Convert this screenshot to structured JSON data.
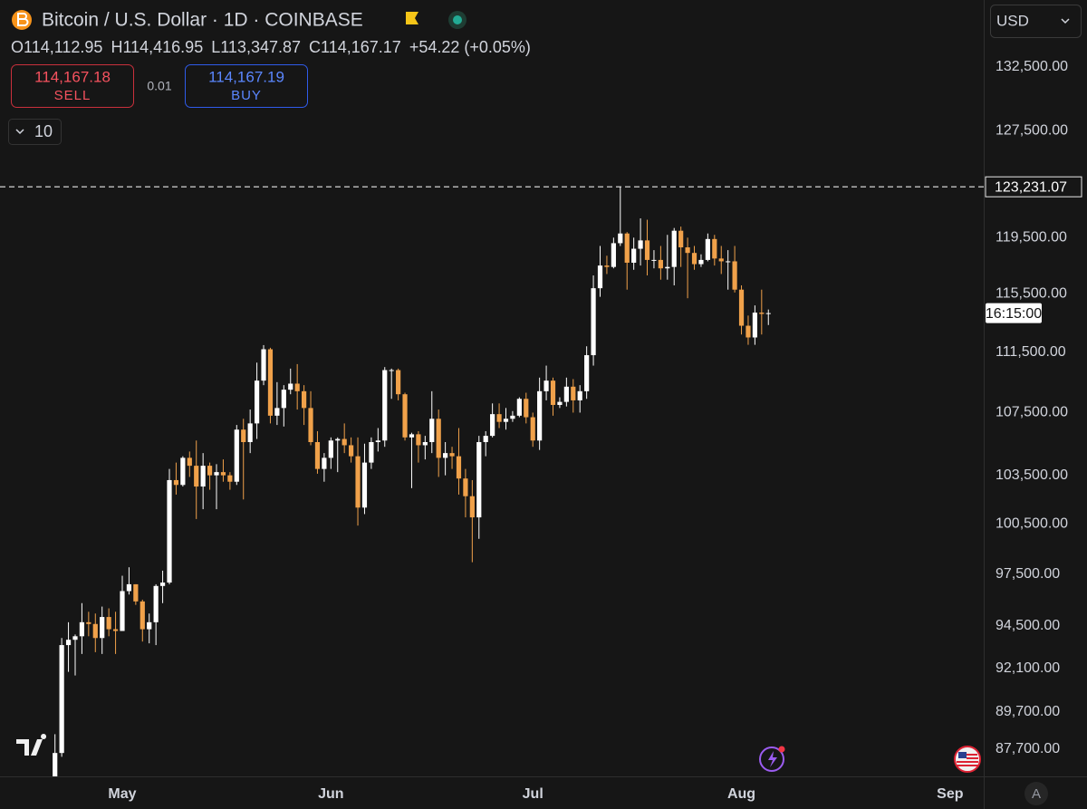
{
  "header": {
    "title": "Bitcoin / U.S. Dollar · 1D · COINBASE",
    "stats": [
      {
        "label": "O",
        "value": "114,112.95"
      },
      {
        "label": "H",
        "value": "114,416.95"
      },
      {
        "label": "L",
        "value": "113,347.87"
      },
      {
        "label": "C",
        "value": "114,167.17"
      }
    ],
    "change": "+54.22 (+0.05%)"
  },
  "trade": {
    "sell_price": "114,167.18",
    "sell": "SELL",
    "spread": "0.01",
    "buy_price": "114,167.19",
    "buy": "BUY",
    "quantity": "10"
  },
  "currency": "USD",
  "scale_button": "A",
  "countdown": "16:15:00",
  "chart_data": {
    "type": "candlestick",
    "log": true,
    "grid": false,
    "up_color": "#ffffff",
    "down_color": "#f0a14a",
    "xlim": [
      -8.17,
      138
    ],
    "xticks": [
      {
        "value": 10,
        "label": "May"
      },
      {
        "value": 41,
        "label": "Jun"
      },
      {
        "value": 71,
        "label": "Jul"
      },
      {
        "value": 102,
        "label": "Aug"
      },
      {
        "value": 133,
        "label": "Sep"
      }
    ],
    "ylim": [
      86270,
      137970
    ],
    "yticks": [
      {
        "value": 87700,
        "label": "87,700.00"
      },
      {
        "value": 89700,
        "label": "89,700.00"
      },
      {
        "value": 92100,
        "label": "92,100.00"
      },
      {
        "value": 94500,
        "label": "94,500.00"
      },
      {
        "value": 97500,
        "label": "97,500.00"
      },
      {
        "value": 100500,
        "label": "100,500.00"
      },
      {
        "value": 103500,
        "label": "103,500.00"
      },
      {
        "value": 107500,
        "label": "107,500.00"
      },
      {
        "value": 111500,
        "label": "111,500.00"
      },
      {
        "value": 115500,
        "label": "115,500.00"
      },
      {
        "value": 119500,
        "label": "119,500.00"
      },
      {
        "value": 127500,
        "label": "127,500.00"
      },
      {
        "value": 132500,
        "label": "132,500.00"
      }
    ],
    "price_line": {
      "value": 123231.07,
      "label": "123,231.07"
    },
    "open": [
      85200,
      87500,
      93400,
      93700,
      93900,
      94700,
      94600,
      93800,
      95000,
      94300,
      94200,
      96500,
      96900,
      95900,
      94300,
      94700,
      96800,
      97000,
      103200,
      102900,
      104600,
      104100,
      102800,
      104100,
      103500,
      103700,
      103500,
      103100,
      106400,
      105600,
      106800,
      109600,
      111700,
      107300,
      107800,
      109000,
      109400,
      108900,
      107800,
      105600,
      103900,
      104600,
      105700,
      105800,
      105400,
      104700,
      101500,
      104300,
      105600,
      105700,
      110300,
      110300,
      108700,
      105900,
      106100,
      105400,
      105600,
      107100,
      104600,
      104900,
      104700,
      103300,
      102200,
      100900,
      105600,
      106000,
      107400,
      106900,
      107100,
      107300,
      108400,
      107200,
      105700,
      108900,
      109600,
      108000,
      108200,
      109200,
      108300,
      108900,
      111300,
      115900,
      117500,
      117400,
      119100,
      119800,
      117700,
      118700,
      119300,
      117900,
      117900,
      117300,
      117400,
      120000,
      118800,
      118400,
      117600,
      117900,
      119400,
      118000,
      117800,
      117800,
      115800,
      113300,
      112500,
      114200,
      114112.95
    ],
    "high": [
      88500,
      93800,
      94700,
      94000,
      95800,
      95300,
      95200,
      95600,
      95500,
      95300,
      97400,
      97900,
      96900,
      96000,
      95200,
      96900,
      97700,
      103900,
      104300,
      104700,
      105000,
      105700,
      104900,
      104300,
      104200,
      104500,
      103700,
      106700,
      107100,
      107700,
      110800,
      111980,
      111800,
      109500,
      109300,
      110400,
      110700,
      109300,
      108900,
      106300,
      104900,
      105900,
      105900,
      106800,
      105900,
      105900,
      105500,
      105900,
      106500,
      110500,
      110400,
      110400,
      108800,
      106200,
      106300,
      106000,
      108900,
      107700,
      105600,
      105300,
      106500,
      103900,
      103200,
      106000,
      106300,
      108100,
      108100,
      107800,
      107600,
      108500,
      108800,
      107500,
      109800,
      110600,
      109800,
      108500,
      109800,
      109700,
      109300,
      111900,
      116800,
      118900,
      118200,
      119500,
      123231.07,
      119900,
      119500,
      120900,
      120800,
      118600,
      118900,
      119700,
      120200,
      120300,
      119500,
      118900,
      118300,
      119800,
      119700,
      118900,
      118600,
      118900,
      116100,
      114000,
      114700,
      115800,
      114416.95
    ],
    "low": [
      85100,
      87300,
      91900,
      91700,
      92900,
      93900,
      93000,
      92900,
      93900,
      92900,
      94200,
      96300,
      95700,
      93600,
      93500,
      93400,
      95800,
      96900,
      102300,
      102800,
      103400,
      100800,
      101400,
      102600,
      101400,
      103100,
      102600,
      102900,
      102000,
      104900,
      105800,
      109300,
      106800,
      106700,
      106600,
      108700,
      107700,
      106700,
      105400,
      103600,
      103100,
      103900,
      103700,
      104900,
      104300,
      100400,
      101100,
      103900,
      105000,
      105300,
      108400,
      108300,
      105700,
      102700,
      104300,
      104500,
      104900,
      103400,
      103500,
      103900,
      102300,
      100900,
      98200,
      99600,
      104700,
      105900,
      106500,
      106400,
      106900,
      107200,
      106800,
      105300,
      105100,
      108300,
      107300,
      107800,
      107900,
      107500,
      107500,
      108400,
      110600,
      115300,
      116900,
      117300,
      118900,
      115800,
      117200,
      117500,
      116800,
      117300,
      116500,
      116500,
      116100,
      117400,
      115200,
      117200,
      117400,
      117800,
      117500,
      116900,
      115800,
      115600,
      112700,
      112000,
      112000,
      112700,
      113347.87
    ],
    "close": [
      87500,
      93400,
      93700,
      93900,
      94700,
      94600,
      93800,
      95000,
      94300,
      94200,
      96500,
      96900,
      95900,
      94300,
      94700,
      96800,
      97000,
      103200,
      102900,
      104600,
      104100,
      102800,
      104100,
      103500,
      103700,
      103500,
      103100,
      106400,
      105600,
      106800,
      109600,
      111700,
      107300,
      107800,
      109000,
      109400,
      108900,
      107800,
      105600,
      103900,
      104600,
      105700,
      105800,
      105400,
      104700,
      101500,
      104300,
      105600,
      105700,
      110300,
      110300,
      108700,
      105900,
      106100,
      105400,
      105600,
      107100,
      104600,
      104900,
      104700,
      103300,
      102200,
      100900,
      105600,
      106000,
      107400,
      106900,
      107100,
      107300,
      108400,
      107200,
      105700,
      108900,
      109600,
      108000,
      108200,
      109200,
      108300,
      108900,
      111300,
      115900,
      117500,
      117400,
      119100,
      119800,
      117700,
      118700,
      119300,
      117900,
      117900,
      117300,
      117400,
      120000,
      118800,
      118400,
      117600,
      117900,
      119400,
      118000,
      117800,
      117800,
      115800,
      113300,
      112500,
      114200,
      114112.95,
      114167.17
    ]
  }
}
